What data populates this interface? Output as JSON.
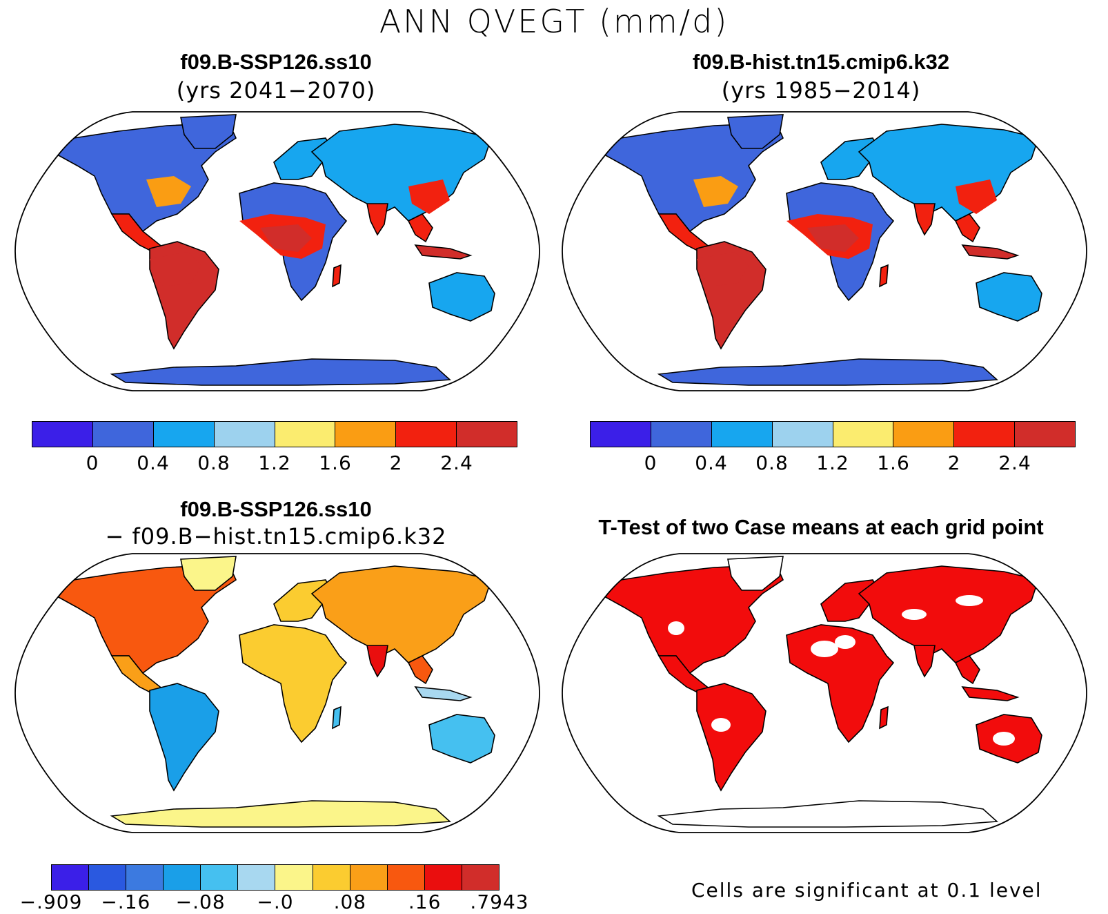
{
  "title": "ANN QVEGT (mm/d)",
  "panels": {
    "top_left": {
      "title": "f09.B-SSP126.ss10",
      "subtitle": "(yrs 2041−2070)"
    },
    "top_right": {
      "title": "f09.B-hist.tn15.cmip6.k32",
      "subtitle": "(yrs 1985−2014)"
    },
    "bottom_left": {
      "title": "f09.B-SSP126.ss10",
      "subtitle": "− f09.B−hist.tn15.cmip6.k32"
    },
    "bottom_right": {
      "title": "T-Test of two Case means at each grid point",
      "note": "Cells are significant at 0.1 level"
    }
  },
  "colorbars": {
    "absolute": {
      "colors": [
        "#3b1fe8",
        "#3f66dc",
        "#17a6ef",
        "#9dd2ee",
        "#fbec6f",
        "#fa9d13",
        "#f2210f",
        "#d12d2a"
      ],
      "labels": [
        "0",
        "0.4",
        "0.8",
        "1.2",
        "1.6",
        "2",
        "2.4"
      ]
    },
    "difference": {
      "colors": [
        "#3b1fe8",
        "#2a59e0",
        "#3c7ae0",
        "#1a9fe8",
        "#45c0f0",
        "#a8d8f0",
        "#fbf58a",
        "#fbcc30",
        "#fa9f18",
        "#f8580f",
        "#ea0e0e",
        "#d12d2a"
      ],
      "labels": [
        "−.909",
        "−.16",
        "−.08",
        "−.0",
        ".08",
        ".16",
        ".7943"
      ]
    }
  },
  "map_colors": {
    "ocean": "#ffffff",
    "significant": "#f20c0c",
    "antarctica_abs": "#3f66dc",
    "antarctica_diff": "#fbf58a"
  }
}
